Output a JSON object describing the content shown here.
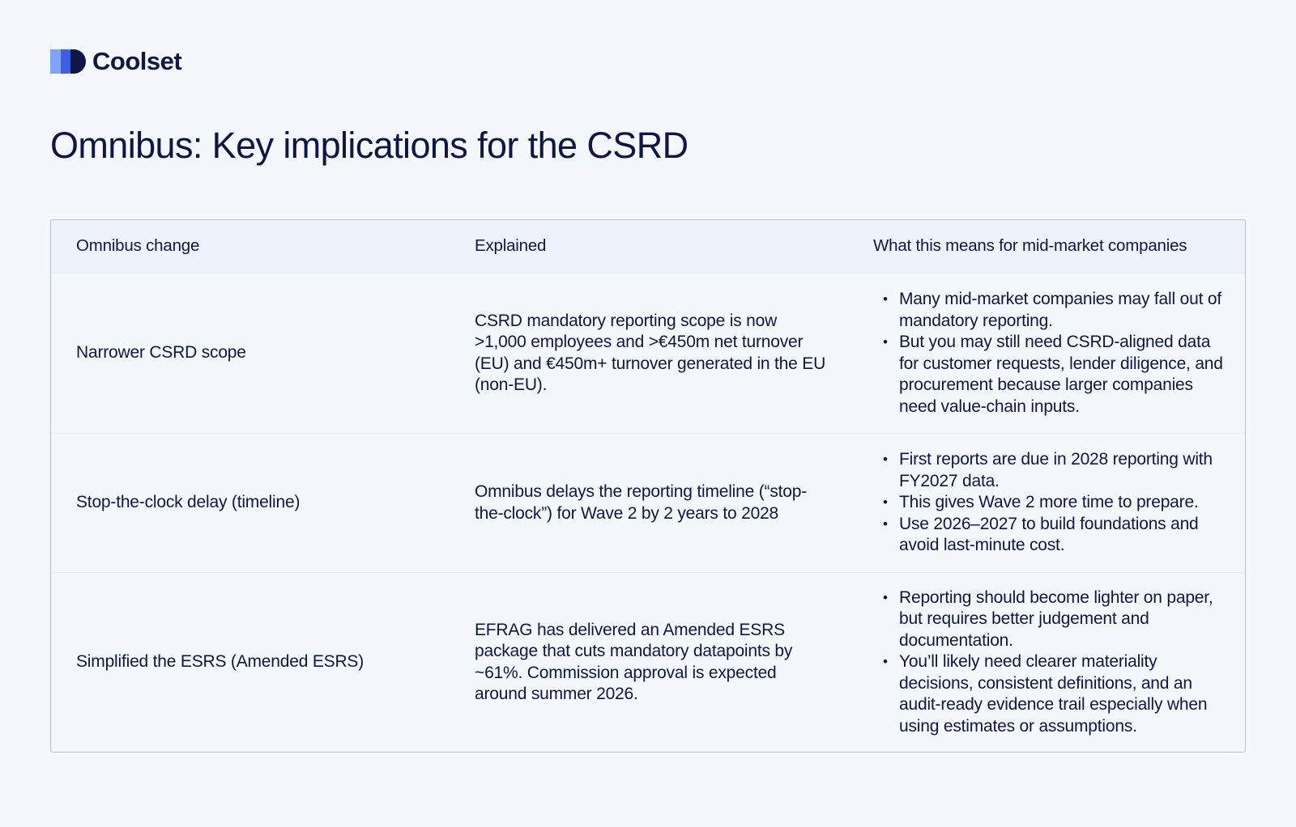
{
  "brand": {
    "name": "Coolset",
    "colors": {
      "mark_light": "#6c93f2",
      "mark_mid": "#3f5fe0",
      "mark_dark": "#101646"
    }
  },
  "title": "Omnibus: Key implications for the CSRD",
  "table": {
    "headers": [
      "Omnibus change",
      "Explained",
      "What this means for mid-market companies"
    ],
    "rows": [
      {
        "change": "Narrower CSRD scope",
        "explained": "CSRD mandatory reporting scope is now >1,000 employees and >€450m net turnover (EU) and €450m+ turnover generated in the EU (non-EU).",
        "implications": [
          "Many mid-market companies may fall out of mandatory reporting.",
          "But you may still need CSRD-aligned data for customer requests, lender diligence, and procurement because larger companies need value-chain inputs."
        ]
      },
      {
        "change": "Stop-the-clock delay (timeline)",
        "explained": "Omnibus delays the reporting timeline (“stop-the-clock”) for Wave 2 by 2 years to 2028",
        "implications": [
          "First reports are due in 2028 reporting with FY2027 data.",
          "This gives Wave 2 more time to prepare.",
          "Use 2026–2027 to build foundations and avoid last-minute cost."
        ]
      },
      {
        "change": "Simplified the ESRS (Amended ESRS)",
        "explained": "EFRAG has delivered an Amended ESRS package that cuts mandatory datapoints by ~61%. Commission approval is expected around summer 2026.",
        "implications": [
          "Reporting should become lighter on paper, but requires better judgement and documentation.",
          "You’ll likely need clearer materiality decisions, consistent definitions, and an audit-ready evidence trail especially when using estimates or assumptions."
        ]
      }
    ]
  }
}
